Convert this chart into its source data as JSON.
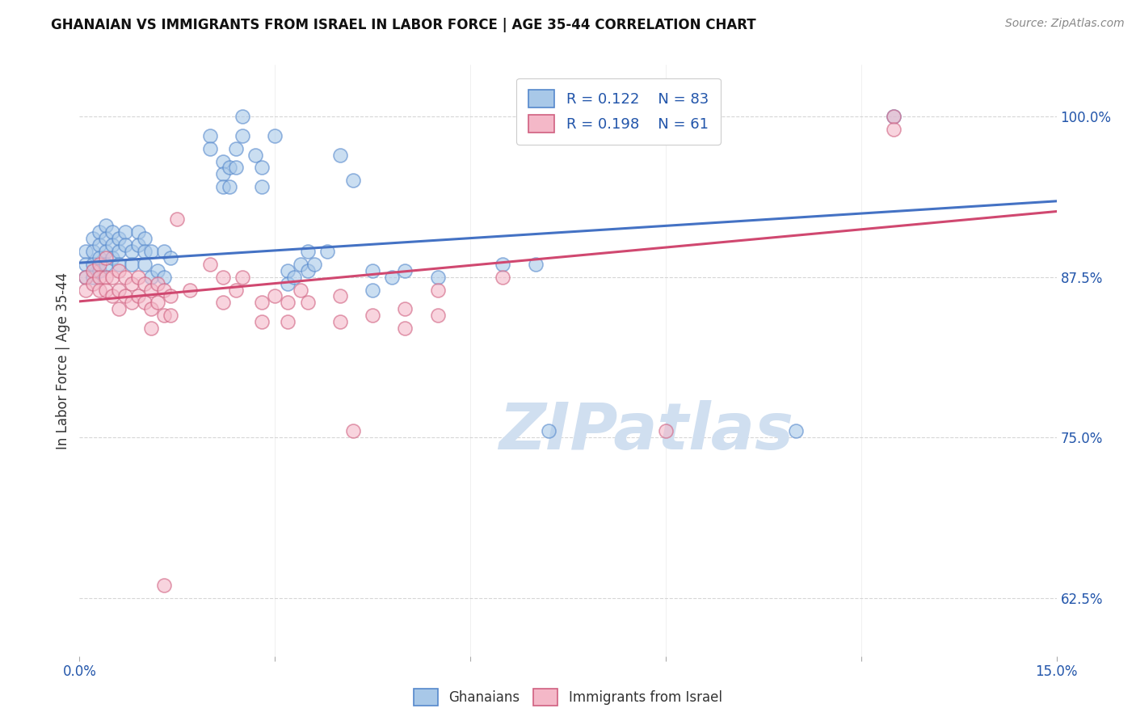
{
  "title": "GHANAIAN VS IMMIGRANTS FROM ISRAEL IN LABOR FORCE | AGE 35-44 CORRELATION CHART",
  "source": "Source: ZipAtlas.com",
  "ylabel": "In Labor Force | Age 35-44",
  "xlim": [
    0.0,
    0.15
  ],
  "ylim": [
    0.58,
    1.04
  ],
  "yticks": [
    0.625,
    0.75,
    0.875,
    1.0
  ],
  "ytick_labels": [
    "62.5%",
    "75.0%",
    "87.5%",
    "100.0%"
  ],
  "xticks": [
    0.0,
    0.03,
    0.06,
    0.09,
    0.12,
    0.15
  ],
  "xtick_labels": [
    "0.0%",
    "",
    "",
    "",
    "",
    "15.0%"
  ],
  "legend_R1": "R = 0.122",
  "legend_N1": "N = 83",
  "legend_R2": "R = 0.198",
  "legend_N2": "N = 61",
  "color_blue": "#a8c8e8",
  "color_pink": "#f4b8c8",
  "edge_blue": "#5588cc",
  "edge_pink": "#d06080",
  "line_color_blue": "#4472c4",
  "line_color_pink": "#d04870",
  "text_blue": "#2255aa",
  "watermark": "ZIPatlas",
  "watermark_color": "#d0dff0",
  "blue_scatter": [
    [
      0.001,
      0.895
    ],
    [
      0.001,
      0.885
    ],
    [
      0.001,
      0.875
    ],
    [
      0.002,
      0.905
    ],
    [
      0.002,
      0.895
    ],
    [
      0.002,
      0.885
    ],
    [
      0.002,
      0.875
    ],
    [
      0.003,
      0.91
    ],
    [
      0.003,
      0.9
    ],
    [
      0.003,
      0.89
    ],
    [
      0.003,
      0.88
    ],
    [
      0.004,
      0.915
    ],
    [
      0.004,
      0.905
    ],
    [
      0.004,
      0.895
    ],
    [
      0.004,
      0.885
    ],
    [
      0.005,
      0.91
    ],
    [
      0.005,
      0.9
    ],
    [
      0.005,
      0.89
    ],
    [
      0.006,
      0.905
    ],
    [
      0.006,
      0.895
    ],
    [
      0.006,
      0.885
    ],
    [
      0.007,
      0.91
    ],
    [
      0.007,
      0.9
    ],
    [
      0.008,
      0.895
    ],
    [
      0.008,
      0.885
    ],
    [
      0.009,
      0.91
    ],
    [
      0.009,
      0.9
    ],
    [
      0.01,
      0.905
    ],
    [
      0.01,
      0.895
    ],
    [
      0.01,
      0.885
    ],
    [
      0.011,
      0.895
    ],
    [
      0.011,
      0.875
    ],
    [
      0.012,
      0.88
    ],
    [
      0.013,
      0.895
    ],
    [
      0.013,
      0.875
    ],
    [
      0.014,
      0.89
    ],
    [
      0.02,
      0.985
    ],
    [
      0.02,
      0.975
    ],
    [
      0.022,
      0.965
    ],
    [
      0.022,
      0.955
    ],
    [
      0.022,
      0.945
    ],
    [
      0.023,
      0.96
    ],
    [
      0.023,
      0.945
    ],
    [
      0.024,
      0.975
    ],
    [
      0.024,
      0.96
    ],
    [
      0.025,
      1.0
    ],
    [
      0.025,
      0.985
    ],
    [
      0.027,
      0.97
    ],
    [
      0.028,
      0.96
    ],
    [
      0.028,
      0.945
    ],
    [
      0.03,
      0.985
    ],
    [
      0.032,
      0.88
    ],
    [
      0.032,
      0.87
    ],
    [
      0.033,
      0.875
    ],
    [
      0.034,
      0.885
    ],
    [
      0.035,
      0.895
    ],
    [
      0.035,
      0.88
    ],
    [
      0.036,
      0.885
    ],
    [
      0.038,
      0.895
    ],
    [
      0.04,
      0.97
    ],
    [
      0.042,
      0.95
    ],
    [
      0.045,
      0.88
    ],
    [
      0.045,
      0.865
    ],
    [
      0.048,
      0.875
    ],
    [
      0.05,
      0.88
    ],
    [
      0.055,
      0.875
    ],
    [
      0.065,
      0.885
    ],
    [
      0.07,
      0.885
    ],
    [
      0.072,
      0.755
    ],
    [
      0.11,
      0.755
    ],
    [
      0.125,
      1.0
    ]
  ],
  "pink_scatter": [
    [
      0.001,
      0.875
    ],
    [
      0.001,
      0.865
    ],
    [
      0.002,
      0.88
    ],
    [
      0.002,
      0.87
    ],
    [
      0.003,
      0.885
    ],
    [
      0.003,
      0.875
    ],
    [
      0.003,
      0.865
    ],
    [
      0.004,
      0.89
    ],
    [
      0.004,
      0.875
    ],
    [
      0.004,
      0.865
    ],
    [
      0.005,
      0.875
    ],
    [
      0.005,
      0.86
    ],
    [
      0.006,
      0.88
    ],
    [
      0.006,
      0.865
    ],
    [
      0.006,
      0.85
    ],
    [
      0.007,
      0.875
    ],
    [
      0.007,
      0.86
    ],
    [
      0.008,
      0.87
    ],
    [
      0.008,
      0.855
    ],
    [
      0.009,
      0.875
    ],
    [
      0.009,
      0.86
    ],
    [
      0.01,
      0.87
    ],
    [
      0.01,
      0.855
    ],
    [
      0.011,
      0.865
    ],
    [
      0.011,
      0.85
    ],
    [
      0.011,
      0.835
    ],
    [
      0.012,
      0.87
    ],
    [
      0.012,
      0.855
    ],
    [
      0.013,
      0.865
    ],
    [
      0.013,
      0.845
    ],
    [
      0.014,
      0.86
    ],
    [
      0.014,
      0.845
    ],
    [
      0.015,
      0.92
    ],
    [
      0.017,
      0.865
    ],
    [
      0.02,
      0.885
    ],
    [
      0.022,
      0.875
    ],
    [
      0.022,
      0.855
    ],
    [
      0.024,
      0.865
    ],
    [
      0.025,
      0.875
    ],
    [
      0.028,
      0.855
    ],
    [
      0.028,
      0.84
    ],
    [
      0.03,
      0.86
    ],
    [
      0.032,
      0.855
    ],
    [
      0.032,
      0.84
    ],
    [
      0.034,
      0.865
    ],
    [
      0.035,
      0.855
    ],
    [
      0.04,
      0.86
    ],
    [
      0.04,
      0.84
    ],
    [
      0.042,
      0.755
    ],
    [
      0.045,
      0.845
    ],
    [
      0.05,
      0.85
    ],
    [
      0.05,
      0.835
    ],
    [
      0.055,
      0.865
    ],
    [
      0.055,
      0.845
    ],
    [
      0.065,
      0.875
    ],
    [
      0.09,
      0.755
    ],
    [
      0.125,
      1.0
    ],
    [
      0.125,
      0.99
    ],
    [
      0.013,
      0.635
    ]
  ],
  "blue_line_x": [
    0.0,
    0.15
  ],
  "blue_line_y": [
    0.886,
    0.934
  ],
  "pink_line_x": [
    0.0,
    0.15
  ],
  "pink_line_y": [
    0.856,
    0.926
  ]
}
